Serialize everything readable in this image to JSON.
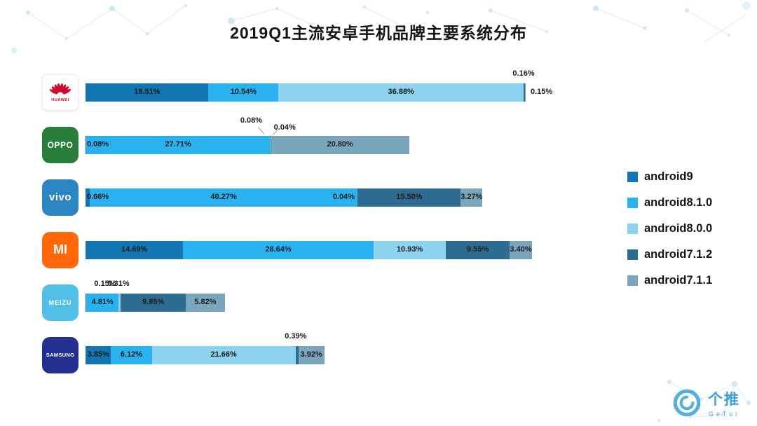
{
  "title": "2019Q1主流安卓手机品牌主要系统分布",
  "chart_data": {
    "type": "bar",
    "variant": "horizontal-stacked",
    "title": "2019Q1主流安卓手机品牌主要系统分布",
    "value_unit": "%",
    "xlim": [
      0,
      67.5
    ],
    "grid": false,
    "legend_position": "right",
    "series": [
      {
        "name": "android9",
        "color": "#1375b2"
      },
      {
        "name": "android8.1.0",
        "color": "#29b2ef"
      },
      {
        "name": "android8.0.0",
        "color": "#8dd3f0"
      },
      {
        "name": "android7.1.2",
        "color": "#2d6c90"
      },
      {
        "name": "android7.1.1",
        "color": "#7aa6bd"
      }
    ],
    "brands": [
      {
        "name": "HUAWEI",
        "values": [
          18.51,
          10.54,
          36.88,
          0.16,
          0.15
        ],
        "placements": [
          "inside",
          "inside",
          "inside",
          "above",
          "end"
        ],
        "logo": {
          "type": "huawei",
          "bg": "#ffffff",
          "fg": "#cf0a2c",
          "text": "HUAWEI"
        }
      },
      {
        "name": "OPPO",
        "values": [
          0.08,
          27.71,
          0.08,
          0.04,
          20.8
        ],
        "placements": [
          "start",
          "inside",
          "above-hi",
          "above-lo",
          "inside"
        ],
        "logo": {
          "type": "text",
          "bg": "#2a7e3b",
          "fg": "#ffffff",
          "text": "OPPO",
          "size": 12,
          "ls": 0.5
        }
      },
      {
        "name": "vivo",
        "values": [
          0.66,
          40.27,
          0.04,
          15.5,
          3.27
        ],
        "placements": [
          "start",
          "inside",
          "before",
          "inside",
          "inside"
        ],
        "logo": {
          "type": "text",
          "bg": "#2a85c0",
          "fg": "#ffffff",
          "text": "vivo",
          "size": 15,
          "ls": 0.5
        }
      },
      {
        "name": "MI",
        "values": [
          14.69,
          28.64,
          10.93,
          9.55,
          3.4
        ],
        "placements": [
          "inside",
          "inside",
          "inside",
          "inside",
          "inside"
        ],
        "logo": {
          "type": "text",
          "bg": "#ff6709",
          "fg": "#ffffff",
          "text": "MI",
          "size": 18,
          "ls": 0
        }
      },
      {
        "name": "MEIZU",
        "values": [
          0.15,
          4.81,
          0.31,
          9.85,
          5.82
        ],
        "placements": [
          "above",
          "inside",
          "above",
          "inside",
          "inside"
        ],
        "logo": {
          "type": "text",
          "bg": "#52c0e6",
          "fg": "#ffffff",
          "text": "MEIZU",
          "size": 9,
          "ls": 1
        }
      },
      {
        "name": "SAMSUNG",
        "values": [
          3.85,
          6.12,
          21.66,
          0.39,
          3.92
        ],
        "placements": [
          "inside",
          "inside",
          "inside",
          "above",
          "inside"
        ],
        "logo": {
          "type": "text",
          "bg": "#24308f",
          "fg": "#ffffff",
          "text": "SAMSUNG",
          "size": 7.5,
          "ls": 0.3
        }
      }
    ]
  },
  "footer": {
    "brand_cn": "个推",
    "brand_en": "GeTui"
  }
}
